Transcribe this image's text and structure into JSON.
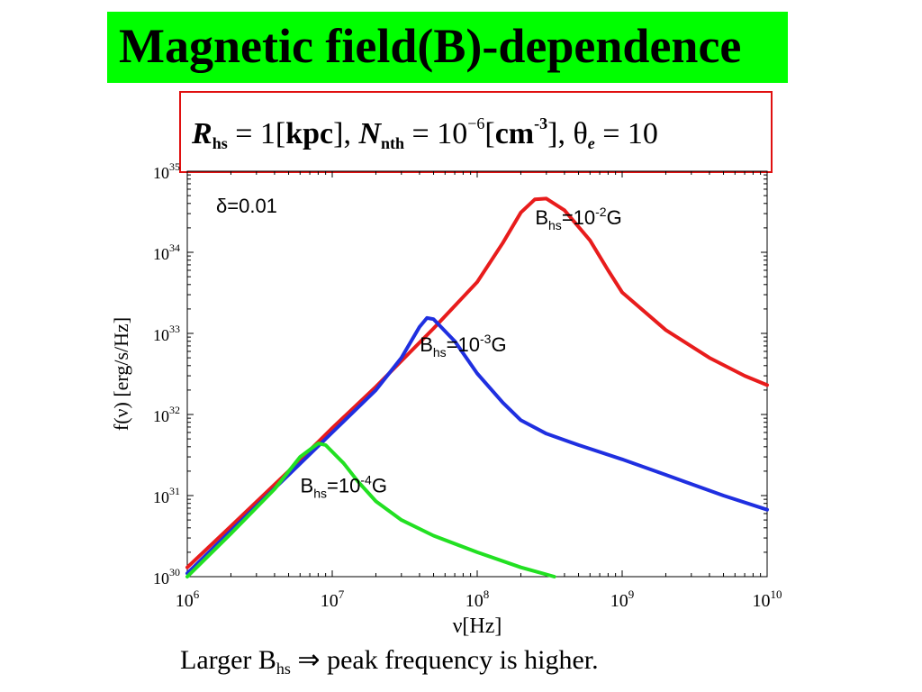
{
  "title": "Magnetic field(B)-dependence",
  "params": {
    "r_sym": "R",
    "r_sub": "hs",
    "r_val": " = 1[",
    "r_unit": "kpc",
    "r_close": "], ",
    "n_sym": "N",
    "n_sub": "nth",
    "n_val": " = 10",
    "n_exp": "−6",
    "n_open": "[",
    "n_unit": "cm",
    "n_unit_exp": "-3",
    "n_close": "], ",
    "theta_sym": "θ",
    "theta_sub": "e",
    "theta_val": " = 10"
  },
  "chart_data": {
    "type": "line",
    "xlabel": "ν[Hz]",
    "ylabel": "f(ν) [erg/s/Hz]",
    "x_scale": "log",
    "y_scale": "log",
    "xlim": [
      1000000.0,
      10000000000.0
    ],
    "ylim": [
      1e+30,
      1e+35
    ],
    "x_ticks": [
      {
        "base": "10",
        "exp": "6",
        "value": 1000000.0
      },
      {
        "base": "10",
        "exp": "7",
        "value": 10000000.0
      },
      {
        "base": "10",
        "exp": "8",
        "value": 100000000.0
      },
      {
        "base": "10",
        "exp": "9",
        "value": 1000000000.0
      },
      {
        "base": "10",
        "exp": "10",
        "value": 10000000000.0
      }
    ],
    "y_ticks": [
      {
        "base": "10",
        "exp": "30",
        "value": 1e+30
      },
      {
        "base": "10",
        "exp": "31",
        "value": 1e+31
      },
      {
        "base": "10",
        "exp": "32",
        "value": 1e+32
      },
      {
        "base": "10",
        "exp": "33",
        "value": 1e+33
      },
      {
        "base": "10",
        "exp": "34",
        "value": 1e+34
      },
      {
        "base": "10",
        "exp": "35",
        "value": 1e+35
      }
    ],
    "annotation": "δ=0.01",
    "grid": false,
    "series": [
      {
        "label_base": "B",
        "label_sub": "hs",
        "label_mid": "=10",
        "label_sup": "-2",
        "label_end": "G",
        "color": "#e81c1c",
        "points": [
          [
            1000000.0,
            1.3e+30
          ],
          [
            2000000.0,
            4.2e+30
          ],
          [
            5000000.0,
            2e+31
          ],
          [
            10000000.0,
            6.8e+31
          ],
          [
            20000000.0,
            2.2e+32
          ],
          [
            50000000.0,
            1.15e+33
          ],
          [
            100000000.0,
            4.3e+33
          ],
          [
            150000000.0,
            1.3e+34
          ],
          [
            200000000.0,
            3.1e+34
          ],
          [
            250000000.0,
            4.5e+34
          ],
          [
            300000000.0,
            4.6e+34
          ],
          [
            400000000.0,
            3.3e+34
          ],
          [
            600000000.0,
            1.4e+34
          ],
          [
            800000000.0,
            6e+33
          ],
          [
            1000000000.0,
            3.2e+33
          ],
          [
            2000000000.0,
            1.1e+33
          ],
          [
            4000000000.0,
            5e+32
          ],
          [
            7000000000.0,
            3e+32
          ],
          [
            10000000000.0,
            2.3e+32
          ]
        ]
      },
      {
        "label_base": "B",
        "label_sub": "hs",
        "label_mid": "=10",
        "label_sup": "-3",
        "label_end": "G",
        "color": "#1f2fe0",
        "points": [
          [
            1000000.0,
            1.1e+30
          ],
          [
            2000000.0,
            3.7e+30
          ],
          [
            5000000.0,
            1.8e+31
          ],
          [
            10000000.0,
            6e+31
          ],
          [
            20000000.0,
            2e+32
          ],
          [
            30000000.0,
            5e+32
          ],
          [
            40000000.0,
            1.2e+33
          ],
          [
            45000000.0,
            1.55e+33
          ],
          [
            50000000.0,
            1.5e+33
          ],
          [
            70000000.0,
            8e+32
          ],
          [
            100000000.0,
            3.2e+32
          ],
          [
            150000000.0,
            1.4e+32
          ],
          [
            200000000.0,
            8.5e+31
          ],
          [
            300000000.0,
            5.8e+31
          ],
          [
            500000000.0,
            4.2e+31
          ],
          [
            1000000000.0,
            2.8e+31
          ],
          [
            2000000000.0,
            1.8e+31
          ],
          [
            5000000000.0,
            1e+31
          ],
          [
            10000000000.0,
            6.7e+30
          ]
        ]
      },
      {
        "label_base": "B",
        "label_sub": "hs",
        "label_mid": "=10",
        "label_sup": "-4",
        "label_end": "G",
        "color": "#22e022",
        "points": [
          [
            1000000.0,
            1e+30
          ],
          [
            2000000.0,
            3.4e+30
          ],
          [
            4000000.0,
            1.2e+31
          ],
          [
            6000000.0,
            3e+31
          ],
          [
            8000000.0,
            4.4e+31
          ],
          [
            9000000.0,
            4.2e+31
          ],
          [
            12000000.0,
            2.5e+31
          ],
          [
            15000000.0,
            1.5e+31
          ],
          [
            20000000.0,
            8.5e+30
          ],
          [
            30000000.0,
            5e+30
          ],
          [
            50000000.0,
            3.2e+30
          ],
          [
            100000000.0,
            2e+30
          ],
          [
            200000000.0,
            1.3e+30
          ],
          [
            340000000.0,
            1e+30
          ]
        ]
      }
    ]
  },
  "caption": {
    "prefix": "Larger B",
    "sub": "hs",
    "arrow": " ⇒",
    "rest": " peak frequency is higher."
  }
}
